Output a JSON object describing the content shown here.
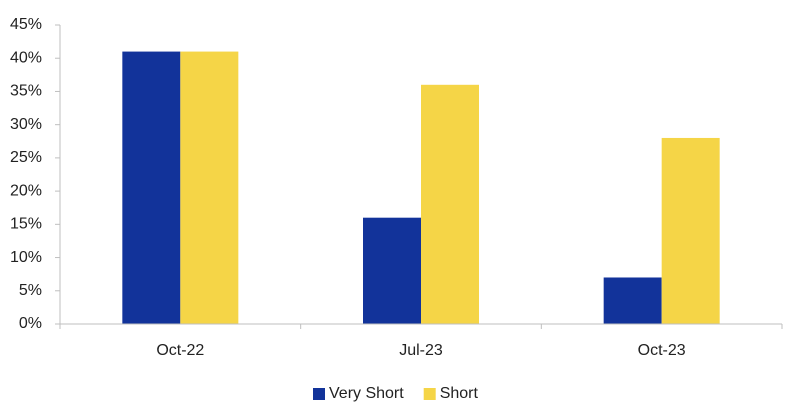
{
  "chart_data": {
    "type": "bar",
    "categories": [
      "Oct-22",
      "Jul-23",
      "Oct-23"
    ],
    "series": [
      {
        "name": "Very Short",
        "color": "#12339a",
        "values": [
          41,
          16,
          7
        ]
      },
      {
        "name": "Short",
        "color": "#f5d547",
        "values": [
          41,
          36,
          28
        ]
      }
    ],
    "ylim": [
      0,
      45
    ],
    "yticks": [
      {
        "value": 0,
        "label": "0%"
      },
      {
        "value": 5,
        "label": "5%"
      },
      {
        "value": 10,
        "label": "10%"
      },
      {
        "value": 15,
        "label": "15%"
      },
      {
        "value": 20,
        "label": "20%"
      },
      {
        "value": 25,
        "label": "25%"
      },
      {
        "value": 30,
        "label": "30%"
      },
      {
        "value": 35,
        "label": "35%"
      },
      {
        "value": 40,
        "label": "40%"
      },
      {
        "value": 45,
        "label": "45%"
      }
    ],
    "grid": false,
    "legend": "bottom"
  }
}
